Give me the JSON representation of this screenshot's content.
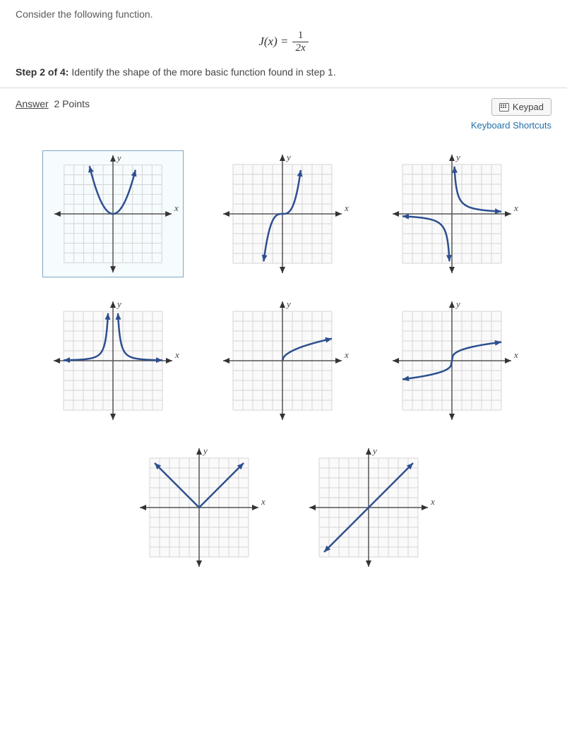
{
  "prompt": "Consider the following function.",
  "equation": {
    "lhs": "J(x) =",
    "num": "1",
    "den": "2x"
  },
  "step": {
    "prefix": "Step 2 of 4:",
    "text": " Identify the shape of the more basic function found in step 1."
  },
  "answer": {
    "label": "Answer",
    "points": "2 Points"
  },
  "controls": {
    "keypad": "Keypad",
    "shortcuts": "Keyboard Shortcuts"
  },
  "style": {
    "grid_color": "#d4d4d4",
    "axis_color": "#555555",
    "curve_color": "#2d4f8f",
    "arrow_color": "#2d4f8f",
    "axis_arrow": "#333333",
    "grid_fill": "#fafafa",
    "selected_fill": "#f6fbfe"
  },
  "graph_labels": {
    "x": "x",
    "y": "y"
  },
  "graphs": [
    {
      "id": "parabola",
      "name": "graph-option-parabola",
      "selected": true
    },
    {
      "id": "cubic",
      "name": "graph-option-cubic",
      "selected": false
    },
    {
      "id": "reciprocal",
      "name": "graph-option-reciprocal",
      "selected": false
    },
    {
      "id": "reciprocal-sq",
      "name": "graph-option-reciprocal-squared",
      "selected": false
    },
    {
      "id": "sqrt",
      "name": "graph-option-square-root",
      "selected": false
    },
    {
      "id": "cbrt",
      "name": "graph-option-cube-root",
      "selected": false
    },
    {
      "id": "abs",
      "name": "graph-option-absolute",
      "selected": false
    },
    {
      "id": "linear",
      "name": "graph-option-linear",
      "selected": false
    }
  ]
}
